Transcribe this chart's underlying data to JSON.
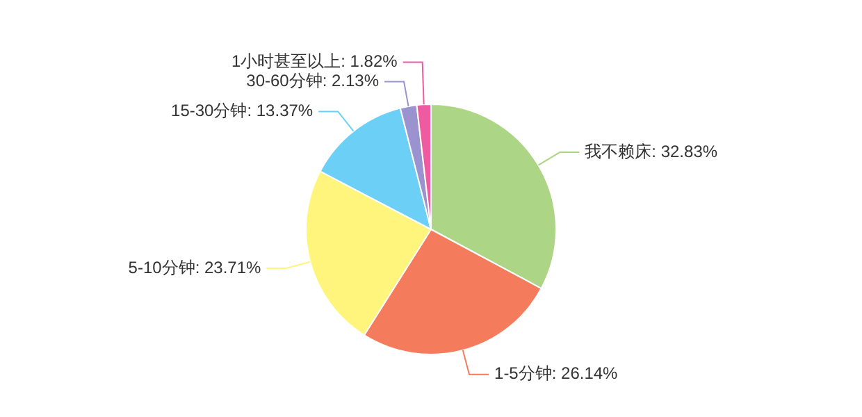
{
  "chart_data": {
    "type": "pie",
    "categories": [
      "我不赖床",
      "1-5分钟",
      "5-10分钟",
      "15-30分钟",
      "30-60分钟",
      "1小时甚至以上"
    ],
    "values": [
      32.83,
      26.14,
      23.71,
      13.37,
      2.13,
      1.82
    ],
    "value_labels": [
      "32.83%",
      "26.14%",
      "23.71%",
      "13.37%",
      "2.13%",
      "1.82%"
    ],
    "colors": [
      "#acd686",
      "#f47c5c",
      "#fff57c",
      "#6ccff6",
      "#9a93cf",
      "#ee5ba0"
    ],
    "legend": false
  }
}
